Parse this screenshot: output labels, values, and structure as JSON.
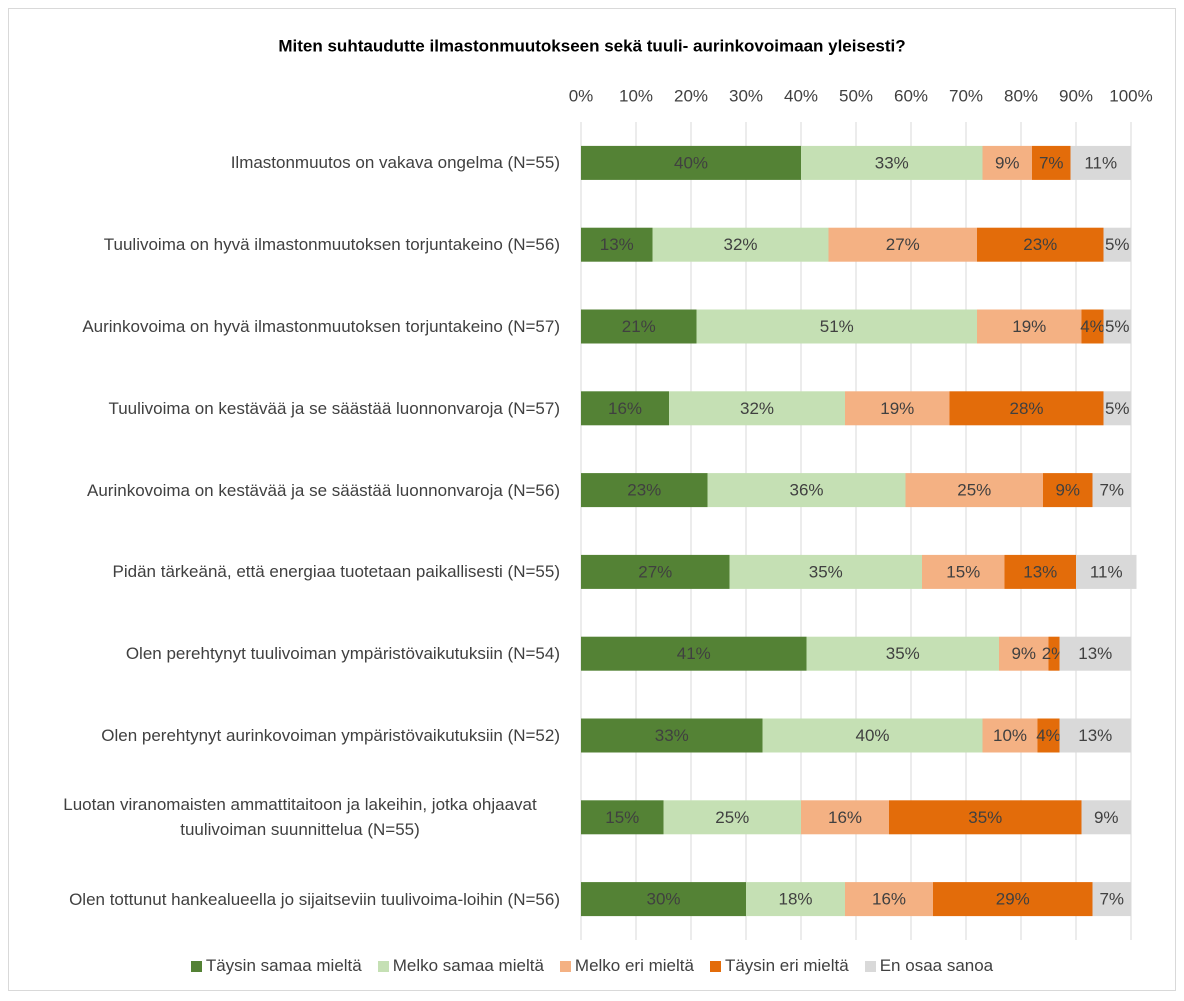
{
  "chart_data": {
    "type": "stacked_bar_horizontal",
    "title": "Miten suhtaudutte ilmastonmuutokseen sekä tuuli- aurinkovoimaan yleisesti?",
    "categories": [
      "Ilmastonmuutos on vakava ongelma (N=55)",
      "Tuulivoima on hyvä ilmastonmuutoksen torjuntakeino (N=56)",
      "Aurinkovoima on hyvä ilmastonmuutoksen torjuntakeino (N=57)",
      "Tuulivoima on kestävää ja se säästää luonnonvaroja (N=57)",
      "Aurinkovoima on kestävää ja se säästää luonnonvaroja (N=56)",
      "Pidän tärkeänä, että energiaa tuotetaan paikallisesti (N=55)",
      "Olen perehtynyt tuulivoiman ympäristövaikutuksiin (N=54)",
      "Olen perehtynyt aurinkovoiman ympäristövaikutuksiin (N=52)",
      "Luotan viranomaisten ammattitaitoon ja lakeihin, jotka ohjaavat tuulivoiman suunnittelua  (N=55)",
      "Olen tottunut hankealueella jo sijaitseviin tuulivoima-loihin (N=56)"
    ],
    "series": [
      {
        "name": "Täysin samaa mieltä",
        "color": "#548235",
        "values": [
          40,
          13,
          21,
          16,
          23,
          27,
          41,
          33,
          15,
          30
        ],
        "value_labels": [
          "40%",
          "13%",
          "21%",
          "16%",
          "23%",
          "27%",
          "41%",
          "33%",
          "15%",
          "30%"
        ]
      },
      {
        "name": "Melko samaa mieltä",
        "color": "#c5e0b4",
        "values": [
          33,
          32,
          51,
          32,
          36,
          35,
          35,
          40,
          25,
          18
        ],
        "value_labels": [
          "33%",
          "32%",
          "51%",
          "32%",
          "36%",
          "35%",
          "35%",
          "40%",
          "25%",
          "18%"
        ]
      },
      {
        "name": "Melko eri mieltä",
        "color": "#f4b183",
        "values": [
          9,
          27,
          19,
          19,
          25,
          15,
          9,
          10,
          16,
          16
        ],
        "value_labels": [
          "9%",
          "27%",
          "19%",
          "19%",
          "25%",
          "15%",
          "9%",
          "10%",
          "16%",
          "16%"
        ]
      },
      {
        "name": "Täysin eri mieltä",
        "color": "#e36c0a",
        "values": [
          7,
          23,
          4,
          28,
          9,
          13,
          2,
          4,
          35,
          29
        ],
        "value_labels": [
          "7%",
          "23%",
          "4%",
          "28%",
          "9%",
          "13%",
          "2%",
          "4%",
          "35%",
          "29%"
        ]
      },
      {
        "name": "En osaa sanoa",
        "color": "#d9d9d9",
        "values": [
          11,
          5,
          5,
          5,
          7,
          11,
          13,
          13,
          9,
          7
        ],
        "value_labels": [
          "11%",
          "5%",
          "5%",
          "5%",
          "7%",
          "11%",
          "13%",
          "13%",
          "9%",
          "7%"
        ]
      }
    ],
    "xlim": [
      0,
      100
    ],
    "xticks": [
      {
        "value": 0,
        "label": "0%"
      },
      {
        "value": 10,
        "label": "10%"
      },
      {
        "value": 20,
        "label": "20%"
      },
      {
        "value": 30,
        "label": "30%"
      },
      {
        "value": 40,
        "label": "40%"
      },
      {
        "value": 50,
        "label": "50%"
      },
      {
        "value": 60,
        "label": "60%"
      },
      {
        "value": 70,
        "label": "70%"
      },
      {
        "value": 80,
        "label": "80%"
      },
      {
        "value": 90,
        "label": "90%"
      },
      {
        "value": 100,
        "label": "100%"
      }
    ],
    "grid": true,
    "legend": "bottom"
  }
}
